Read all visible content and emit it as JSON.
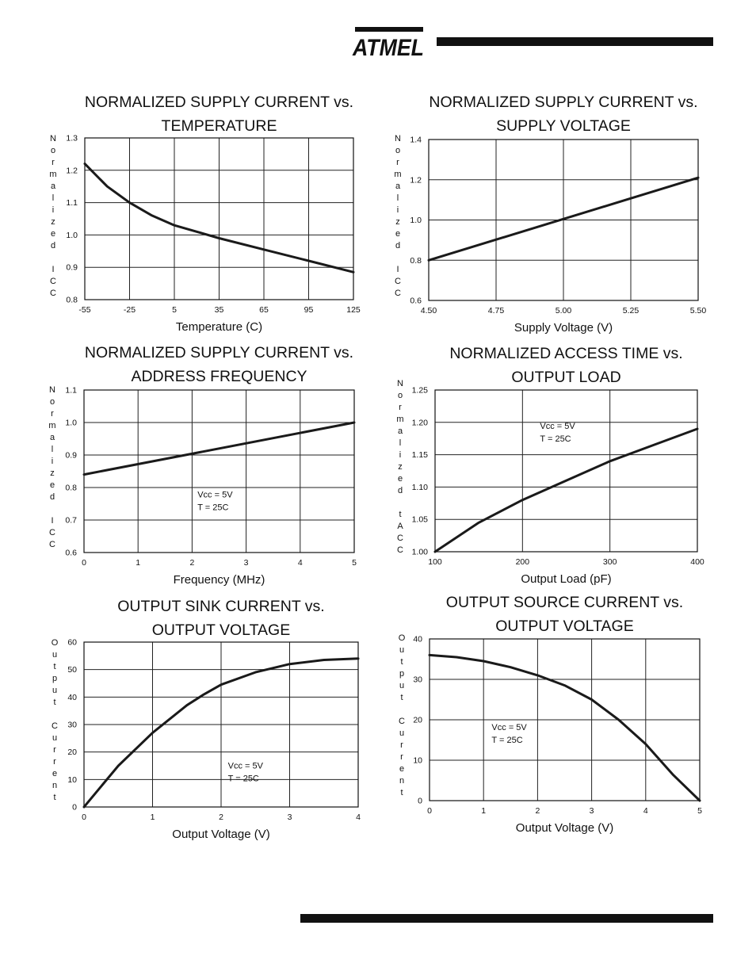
{
  "brand": {
    "logo_text": "ATMEL"
  },
  "chart_data": [
    {
      "type": "line",
      "title": [
        "NORMALIZED SUPPLY CURRENT vs.",
        "TEMPERATURE"
      ],
      "xlabel": "Temperature (C)",
      "ylabel": "Normalized ICC",
      "ylabel_chars": [
        "N",
        "o",
        "r",
        "m",
        "a",
        "l",
        "i",
        "z",
        "e",
        "d",
        "",
        "I",
        "C",
        "C"
      ],
      "xlim": [
        -55,
        125
      ],
      "ylim": [
        0.8,
        1.3
      ],
      "xticks": [
        -55,
        -25,
        5,
        35,
        65,
        95,
        125
      ],
      "xtick_labels": [
        "-55",
        "-25",
        "5",
        "35",
        "65",
        "95",
        "125"
      ],
      "yticks": [
        0.8,
        0.9,
        1.0,
        1.1,
        1.2,
        1.3
      ],
      "ytick_labels": [
        "0.8",
        "0.9",
        "1.0",
        "1.1",
        "1.2",
        "1.3"
      ],
      "grid": true,
      "annotation": [],
      "series": [
        {
          "x": [
            -55,
            -40,
            -25,
            -10,
            5,
            20,
            35,
            65,
            95,
            125
          ],
          "y": [
            1.22,
            1.15,
            1.1,
            1.06,
            1.03,
            1.01,
            0.99,
            0.955,
            0.92,
            0.885
          ]
        }
      ]
    },
    {
      "type": "line",
      "title": [
        "NORMALIZED SUPPLY CURRENT vs.",
        "SUPPLY VOLTAGE"
      ],
      "xlabel": "Supply Voltage (V)",
      "ylabel": "Normalized ICC",
      "ylabel_chars": [
        "N",
        "o",
        "r",
        "m",
        "a",
        "l",
        "i",
        "z",
        "e",
        "d",
        "",
        "I",
        "C",
        "C"
      ],
      "xlim": [
        4.5,
        5.5
      ],
      "ylim": [
        0.6,
        1.4
      ],
      "xticks": [
        4.5,
        4.75,
        5.0,
        5.25,
        5.5
      ],
      "xtick_labels": [
        "4.50",
        "4.75",
        "5.00",
        "5.25",
        "5.50"
      ],
      "yticks": [
        0.6,
        0.8,
        1.0,
        1.2,
        1.4
      ],
      "ytick_labels": [
        "0.6",
        "0.8",
        "1.0",
        "1.2",
        "1.4"
      ],
      "grid": true,
      "annotation": [],
      "series": [
        {
          "x": [
            4.5,
            5.5
          ],
          "y": [
            0.8,
            1.21
          ]
        }
      ]
    },
    {
      "type": "line",
      "title": [
        "NORMALIZED SUPPLY CURRENT vs.",
        "ADDRESS FREQUENCY"
      ],
      "xlabel": "Frequency (MHz)",
      "ylabel": "Normalized ICC",
      "ylabel_chars": [
        "N",
        "o",
        "r",
        "m",
        "a",
        "l",
        "i",
        "z",
        "e",
        "d",
        "",
        "I",
        "C",
        "C"
      ],
      "xlim": [
        0,
        5
      ],
      "ylim": [
        0.6,
        1.1
      ],
      "xticks": [
        0,
        1,
        2,
        3,
        4,
        5
      ],
      "xtick_labels": [
        "0",
        "1",
        "2",
        "3",
        "4",
        "5"
      ],
      "yticks": [
        0.6,
        0.7,
        0.8,
        0.9,
        1.0,
        1.1
      ],
      "ytick_labels": [
        "0.6",
        "0.7",
        "0.8",
        "0.9",
        "1.0",
        "1.1"
      ],
      "grid": true,
      "annotation": [
        "Vcc = 5V",
        "T = 25C"
      ],
      "annotation_at": [
        2.1,
        0.77
      ],
      "series": [
        {
          "x": [
            0,
            5
          ],
          "y": [
            0.84,
            1.0
          ]
        }
      ]
    },
    {
      "type": "line",
      "title": [
        "NORMALIZED ACCESS TIME vs.",
        "OUTPUT LOAD"
      ],
      "xlabel": "Output Load (pF)",
      "ylabel": "Normalized tACC",
      "ylabel_chars": [
        "N",
        "o",
        "r",
        "m",
        "a",
        "l",
        "i",
        "z",
        "e",
        "d",
        "",
        "t",
        "A",
        "C",
        "C"
      ],
      "xlim": [
        100,
        400
      ],
      "ylim": [
        1.0,
        1.25
      ],
      "xticks": [
        100,
        200,
        300,
        400
      ],
      "xtick_labels": [
        "100",
        "200",
        "300",
        "400"
      ],
      "yticks": [
        1.0,
        1.05,
        1.1,
        1.15,
        1.2,
        1.25
      ],
      "ytick_labels": [
        "1.00",
        "1.05",
        "1.10",
        "1.15",
        "1.20",
        "1.25"
      ],
      "grid": true,
      "annotation": [
        "Vcc = 5V",
        "T = 25C"
      ],
      "annotation_at": [
        220,
        1.19
      ],
      "series": [
        {
          "x": [
            100,
            150,
            200,
            250,
            300,
            350,
            400
          ],
          "y": [
            1.0,
            1.045,
            1.08,
            1.11,
            1.14,
            1.165,
            1.19
          ]
        }
      ]
    },
    {
      "type": "line",
      "title": [
        "OUTPUT SINK CURRENT vs.",
        "OUTPUT VOLTAGE"
      ],
      "xlabel": "Output Voltage (V)",
      "ylabel": "Output Current",
      "ylabel_chars": [
        "O",
        "u",
        "t",
        "p",
        "u",
        "t",
        "",
        "C",
        "u",
        "r",
        "r",
        "e",
        "n",
        "t"
      ],
      "xlim": [
        0,
        4
      ],
      "ylim": [
        0,
        60
      ],
      "xticks": [
        0,
        1,
        2,
        3,
        4
      ],
      "xtick_labels": [
        "0",
        "1",
        "2",
        "3",
        "4"
      ],
      "yticks": [
        0,
        10,
        20,
        30,
        40,
        50,
        60
      ],
      "ytick_labels": [
        "0",
        "10",
        "20",
        "30",
        "40",
        "50",
        "60"
      ],
      "grid": true,
      "annotation": [
        "Vcc = 5V",
        "T = 25C"
      ],
      "annotation_at": [
        2.1,
        14
      ],
      "series": [
        {
          "x": [
            0,
            0.5,
            1,
            1.5,
            1.75,
            2,
            2.5,
            3,
            3.5,
            4
          ],
          "y": [
            0,
            15,
            27,
            37,
            41,
            44.5,
            49,
            52,
            53.5,
            54
          ]
        }
      ]
    },
    {
      "type": "line",
      "title": [
        "OUTPUT SOURCE CURRENT vs.",
        "OUTPUT VOLTAGE"
      ],
      "xlabel": "Output Voltage (V)",
      "ylabel": "Output Current",
      "ylabel_chars": [
        "O",
        "u",
        "t",
        "p",
        "u",
        "t",
        "",
        "C",
        "u",
        "r",
        "r",
        "e",
        "n",
        "t"
      ],
      "xlim": [
        0,
        5
      ],
      "ylim": [
        0,
        40
      ],
      "xticks": [
        0,
        1,
        2,
        3,
        4,
        5
      ],
      "xtick_labels": [
        "0",
        "1",
        "2",
        "3",
        "4",
        "5"
      ],
      "yticks": [
        0,
        10,
        20,
        30,
        40
      ],
      "ytick_labels": [
        "0",
        "10",
        "20",
        "30",
        "40"
      ],
      "grid": true,
      "annotation": [
        "Vcc = 5V",
        "T = 25C"
      ],
      "annotation_at": [
        1.15,
        17.5
      ],
      "series": [
        {
          "x": [
            0,
            0.5,
            1,
            1.5,
            2,
            2.5,
            3,
            3.5,
            4,
            4.5,
            5
          ],
          "y": [
            36,
            35.5,
            34.5,
            33,
            31,
            28.5,
            25,
            20,
            14,
            6.5,
            0
          ]
        }
      ]
    }
  ]
}
